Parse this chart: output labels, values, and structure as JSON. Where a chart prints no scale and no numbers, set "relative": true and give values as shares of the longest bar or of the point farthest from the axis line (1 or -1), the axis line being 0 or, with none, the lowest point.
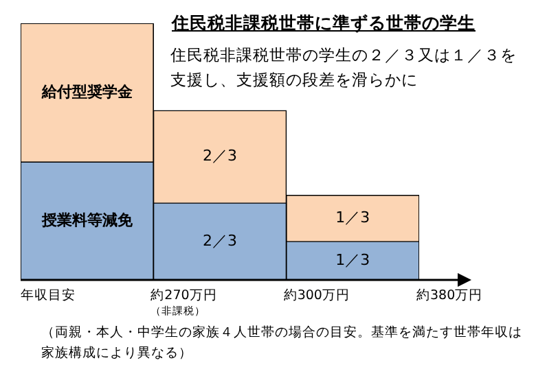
{
  "chart_data": {
    "type": "bar",
    "stacked": true,
    "relative": true,
    "title": "住民税非課税世帯に準ずる世帯の学生",
    "subtitle": "住民税非課税世帯の学生の２／３又は１／３を支援し、支援額の段差を滑らかに",
    "xlabel": "年収目安",
    "categories": [
      null,
      null,
      null
    ],
    "series": [
      {
        "color": "#95b3d7",
        "values": [
          0.46,
          0.3,
          0.15
        ]
      },
      {
        "color": "#fcd5b4",
        "values": [
          0.54,
          0.36,
          0.18
        ]
      }
    ],
    "annotations": [
      "授業料等減免",
      "2／3",
      "1／3",
      "給付型奨学金",
      "2／3",
      "1／3",
      "約270万円",
      "（非課税）",
      "約300万円",
      "約380万円",
      "（両親・本人・中学生の家族４人世帯の場合の目安。基準を満たす世帯年収は家族構成により異なる）"
    ],
    "legend": false
  }
}
